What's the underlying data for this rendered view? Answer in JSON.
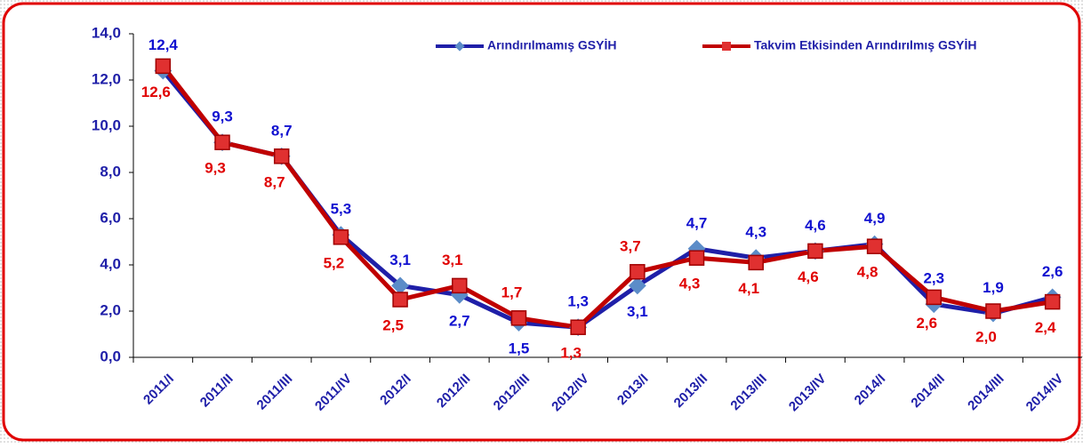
{
  "chart_data": {
    "type": "line",
    "categories": [
      "2011/I",
      "2011/II",
      "2011/III",
      "2011/IV",
      "2012/I",
      "2012/II",
      "2012/III",
      "2012/IV",
      "2013/I",
      "2013/II",
      "2013/III",
      "2013/IV",
      "2014/I",
      "2014/II",
      "2014/III",
      "2014/IV"
    ],
    "series": [
      {
        "name": "Arındırılmamış GSYİH",
        "color": "#1f1fa8",
        "marker_color": "#5b8cc8",
        "values": [
          12.4,
          9.3,
          8.7,
          5.3,
          3.1,
          2.7,
          1.5,
          1.3,
          3.1,
          4.7,
          4.3,
          4.6,
          4.9,
          2.3,
          1.9,
          2.6
        ],
        "value_labels": [
          "12,4",
          "9,3",
          "8,7",
          "5,3",
          "3,1",
          "2,7",
          "1,5",
          "1,3",
          "3,1",
          "4,7",
          "4,3",
          "4,6",
          "4,9",
          "2,3",
          "1,9",
          "2,6"
        ]
      },
      {
        "name": "Takvim Etkisinden Arındırılmış GSYİH",
        "color": "#c00000",
        "marker_color": "#e03030",
        "values": [
          12.6,
          9.3,
          8.7,
          5.2,
          2.5,
          3.1,
          1.7,
          1.3,
          3.7,
          4.3,
          4.1,
          4.6,
          4.8,
          2.6,
          2.0,
          2.4
        ],
        "value_labels": [
          "12,6",
          "9,3",
          "8,7",
          "5,2",
          "2,5",
          "3,1",
          "1,7",
          "1,3",
          "3,7",
          "4,3",
          "4,1",
          "4,6",
          "4,8",
          "2,6",
          "2,0",
          "2,4"
        ]
      }
    ],
    "ylim": [
      0,
      14
    ],
    "yticks": [
      {
        "value": 0,
        "label": "0,0"
      },
      {
        "value": 2,
        "label": "2,0"
      },
      {
        "value": 4,
        "label": "4,0"
      },
      {
        "value": 6,
        "label": "6,0"
      },
      {
        "value": 8,
        "label": "8,0"
      },
      {
        "value": 10,
        "label": "10,0"
      },
      {
        "value": 12,
        "label": "12,0"
      },
      {
        "value": 14,
        "label": "14,0"
      }
    ],
    "legend": "top"
  }
}
